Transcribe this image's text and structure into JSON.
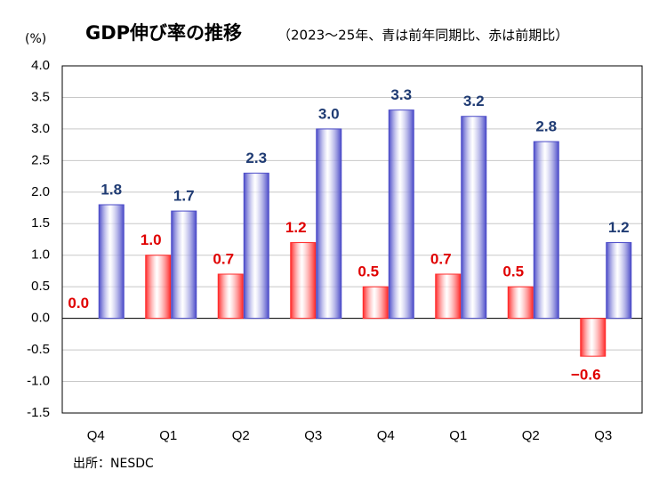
{
  "chart_data": {
    "type": "bar",
    "title": "GDP伸び率の推移",
    "subtitle": "（2023～25年、青は前年同期比、赤は前期比）",
    "y_axis_label": "(%)",
    "source": "出所：NESDC",
    "categories": [
      "Q4",
      "Q1",
      "Q2",
      "Q3",
      "Q4",
      "Q1",
      "Q2",
      "Q3"
    ],
    "series": [
      {
        "color": "#ff2a2a",
        "values": [
          0.0,
          1.0,
          0.7,
          1.2,
          0.5,
          0.7,
          0.5,
          -0.6
        ],
        "value_labels": [
          "0.0",
          "1.0",
          "0.7",
          "1.2",
          "0.5",
          "0.7",
          "0.5",
          "−0.6"
        ]
      },
      {
        "color": "#4b4bc8",
        "values": [
          1.8,
          1.7,
          2.3,
          3.0,
          3.3,
          3.2,
          2.8,
          1.2
        ],
        "value_labels": [
          "1.8",
          "1.7",
          "2.3",
          "3.0",
          "3.3",
          "3.2",
          "2.8",
          "1.2"
        ]
      }
    ],
    "ylim": [
      -1.5,
      4.0
    ],
    "yticks": [
      {
        "value": -1.5,
        "label": "-1.5"
      },
      {
        "value": -1,
        "label": "-1.0"
      },
      {
        "value": -0.5,
        "label": "-0.5"
      },
      {
        "value": 0,
        "label": "0.0"
      },
      {
        "value": 0.5,
        "label": "0.5"
      },
      {
        "value": 1,
        "label": "1.0"
      },
      {
        "value": 1.5,
        "label": "1.5"
      },
      {
        "value": 2,
        "label": "2.0"
      },
      {
        "value": 2.5,
        "label": "2.5"
      },
      {
        "value": 3,
        "label": "3.0"
      },
      {
        "value": 3.5,
        "label": "3.5"
      },
      {
        "value": 4,
        "label": "4.0"
      }
    ],
    "grid": true
  }
}
